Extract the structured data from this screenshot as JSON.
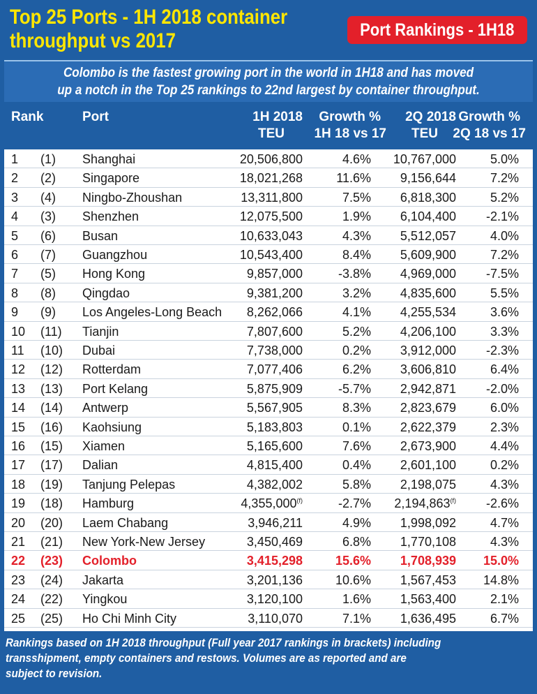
{
  "header": {
    "title_line1": "Top 25 Ports - 1H 2018 container",
    "title_line2": "throughput vs 2017",
    "badge": "Port Rankings - 1H18",
    "subtitle_line1": "Colombo is the fastest growing port in the world in 1H18 and has moved",
    "subtitle_line2": "up a notch in the Top 25 rankings to 22nd largest by container throughput."
  },
  "columns": {
    "rank": "Rank",
    "port": "Port",
    "teu1_line1": "1H 2018",
    "teu1_line2": "TEU",
    "g1_line1": "Growth %",
    "g1_line2": "1H 18 vs 17",
    "teu2_line1": "2Q 2018",
    "teu2_line2": "TEU",
    "g2_line1": "Growth %",
    "g2_line2": "2Q 18 vs 17"
  },
  "rows": [
    {
      "rank": "1",
      "prev": "(1)",
      "port": "Shanghai",
      "teu1": "20,506,800",
      "g1": "4.6%",
      "teu2": "10,767,000",
      "g2": "5.0%"
    },
    {
      "rank": "2",
      "prev": "(2)",
      "port": "Singapore",
      "teu1": "18,021,268",
      "g1": "11.6%",
      "teu2": "9,156,644",
      "g2": "7.2%"
    },
    {
      "rank": "3",
      "prev": "(4)",
      "port": "Ningbo-Zhoushan",
      "teu1": "13,311,800",
      "g1": "7.5%",
      "teu2": "6,818,300",
      "g2": "5.2%"
    },
    {
      "rank": "4",
      "prev": "(3)",
      "port": "Shenzhen",
      "teu1": "12,075,500",
      "g1": "1.9%",
      "teu2": "6,104,400",
      "g2": "-2.1%"
    },
    {
      "rank": "5",
      "prev": "(6)",
      "port": "Busan",
      "teu1": "10,633,043",
      "g1": "4.3%",
      "teu2": "5,512,057",
      "g2": "4.0%"
    },
    {
      "rank": "6",
      "prev": "(7)",
      "port": "Guangzhou",
      "teu1": "10,543,400",
      "g1": "8.4%",
      "teu2": "5,609,900",
      "g2": "7.2%"
    },
    {
      "rank": "7",
      "prev": "(5)",
      "port": "Hong Kong",
      "teu1": "9,857,000",
      "g1": "-3.8%",
      "teu2": "4,969,000",
      "g2": "-7.5%"
    },
    {
      "rank": "8",
      "prev": "(8)",
      "port": "Qingdao",
      "teu1": "9,381,200",
      "g1": "3.2%",
      "teu2": "4,835,600",
      "g2": "5.5%"
    },
    {
      "rank": "9",
      "prev": "(9)",
      "port": "Los Angeles-Long Beach",
      "teu1": "8,262,066",
      "g1": "4.1%",
      "teu2": "4,255,534",
      "g2": "3.6%"
    },
    {
      "rank": "10",
      "prev": "(11)",
      "port": "Tianjin",
      "teu1": "7,807,600",
      "g1": "5.2%",
      "teu2": "4,206,100",
      "g2": "3.3%"
    },
    {
      "rank": "11",
      "prev": "(10)",
      "port": "Dubai",
      "teu1": "7,738,000",
      "g1": "0.2%",
      "teu2": "3,912,000",
      "g2": "-2.3%"
    },
    {
      "rank": "12",
      "prev": "(12)",
      "port": "Rotterdam",
      "teu1": "7,077,406",
      "g1": "6.2%",
      "teu2": "3,606,810",
      "g2": "6.4%"
    },
    {
      "rank": "13",
      "prev": "(13)",
      "port": "Port Kelang",
      "teu1": "5,875,909",
      "g1": "-5.7%",
      "teu2": "2,942,871",
      "g2": "-2.0%"
    },
    {
      "rank": "14",
      "prev": "(14)",
      "port": "Antwerp",
      "teu1": "5,567,905",
      "g1": "8.3%",
      "teu2": "2,823,679",
      "g2": "6.0%"
    },
    {
      "rank": "15",
      "prev": "(16)",
      "port": "Kaohsiung",
      "teu1": "5,183,803",
      "g1": "0.1%",
      "teu2": "2,622,379",
      "g2": "2.3%"
    },
    {
      "rank": "16",
      "prev": "(15)",
      "port": "Xiamen",
      "teu1": "5,165,600",
      "g1": "7.6%",
      "teu2": "2,673,900",
      "g2": "4.4%"
    },
    {
      "rank": "17",
      "prev": "(17)",
      "port": "Dalian",
      "teu1": "4,815,400",
      "g1": "0.4%",
      "teu2": "2,601,100",
      "g2": "0.2%"
    },
    {
      "rank": "18",
      "prev": "(19)",
      "port": "Tanjung Pelepas",
      "teu1": "4,382,002",
      "g1": "5.8%",
      "teu2": "2,198,075",
      "g2": "4.3%"
    },
    {
      "rank": "19",
      "prev": "(18)",
      "port": "Hamburg",
      "teu1": "4,355,000",
      "teu1_note": "(f)",
      "g1": "-2.7%",
      "teu2": "2,194,863",
      "teu2_note": "(f)",
      "g2": "-2.6%"
    },
    {
      "rank": "20",
      "prev": "(20)",
      "port": "Laem Chabang",
      "teu1": "3,946,211",
      "g1": "4.9%",
      "teu2": "1,998,092",
      "g2": "4.7%"
    },
    {
      "rank": "21",
      "prev": "(21)",
      "port": "New York-New Jersey",
      "teu1": "3,450,469",
      "g1": "6.8%",
      "teu2": "1,770,108",
      "g2": "4.3%"
    },
    {
      "rank": "22",
      "prev": "(23)",
      "port": "Colombo",
      "teu1": "3,415,298",
      "g1": "15.6%",
      "teu2": "1,708,939",
      "g2": "15.0%",
      "highlight": true
    },
    {
      "rank": "23",
      "prev": "(24)",
      "port": "Jakarta",
      "teu1": "3,201,136",
      "g1": "10.6%",
      "teu2": "1,567,453",
      "g2": "14.8%"
    },
    {
      "rank": "24",
      "prev": "(22)",
      "port": "Yingkou",
      "teu1": "3,120,100",
      "g1": "1.6%",
      "teu2": "1,563,400",
      "g2": "2.1%"
    },
    {
      "rank": "25",
      "prev": "(25)",
      "port": "Ho Chi Minh City",
      "teu1": "3,110,070",
      "g1": "7.1%",
      "teu2": "1,636,495",
      "g2": "6.7%"
    }
  ],
  "footer": {
    "line1": "Rankings based on 1H 2018 throughput (Full year 2017 rankings in brackets) including",
    "line2": "transshipment, empty containers and restows. Volumes are as reported and are",
    "line3": "subject to revision."
  },
  "colors": {
    "background": "#1f5ea3",
    "title": "#ffe600",
    "highlight": "#e3202a"
  }
}
